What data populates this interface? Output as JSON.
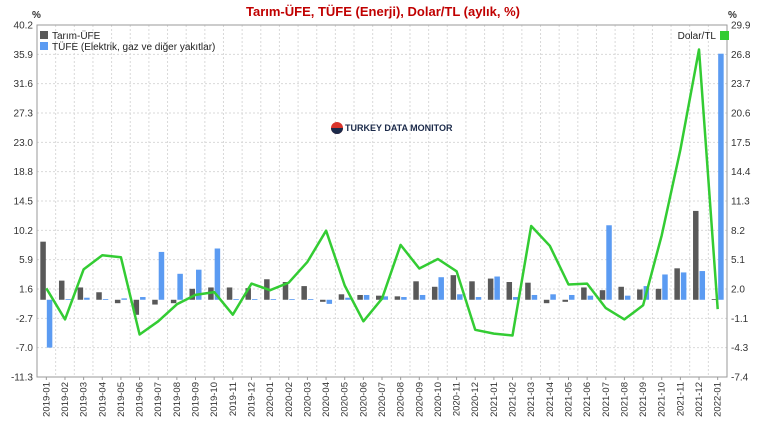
{
  "chart_data": {
    "type": "bar",
    "title": "Tarım-ÜFE, TÜFE (Enerji), Dolar/TL (aylık, %)",
    "left_axis_unit": "%",
    "right_axis_unit": "%",
    "watermark": "TURKEY DATA MONITOR",
    "grid": true,
    "legend_placement_left": "top-left",
    "legend_placement_right": "top-right",
    "categories": [
      "2019-01",
      "2019-02",
      "2019-03",
      "2019-04",
      "2019-05",
      "2019-06",
      "2019-07",
      "2019-08",
      "2019-09",
      "2019-10",
      "2019-11",
      "2019-12",
      "2020-01",
      "2020-02",
      "2020-03",
      "2020-04",
      "2020-05",
      "2020-06",
      "2020-07",
      "2020-08",
      "2020-09",
      "2020-10",
      "2020-11",
      "2020-12",
      "2021-01",
      "2021-02",
      "2021-03",
      "2021-04",
      "2021-05",
      "2021-06",
      "2021-07",
      "2021-08",
      "2021-09",
      "2021-10",
      "2021-11",
      "2021-12",
      "2022-01"
    ],
    "y_left": {
      "ticks": [
        "40.2",
        "35.9",
        "31.6",
        "27.3",
        "23.0",
        "18.8",
        "14.5",
        "10.2",
        "5.9",
        "1.6",
        "-2.7",
        "-7.0",
        "-11.3"
      ],
      "ylim": [
        -11.3,
        40.2
      ]
    },
    "y_right": {
      "ticks": [
        "29.9",
        "26.8",
        "23.7",
        "20.6",
        "17.5",
        "14.4",
        "11.3",
        "8.2",
        "5.1",
        "2.0",
        "-1.1",
        "-4.3",
        "-7.4"
      ],
      "ylim": [
        -7.4,
        29.9
      ]
    },
    "series": [
      {
        "name": "Tarım-ÜFE",
        "type": "bar",
        "axis": "left",
        "color": "#595959",
        "values": [
          8.5,
          2.8,
          1.8,
          1.1,
          -0.5,
          -2.2,
          -0.7,
          -0.5,
          1.6,
          1.8,
          1.8,
          1.7,
          3.0,
          2.6,
          2.0,
          -0.3,
          0.8,
          0.7,
          0.6,
          0.5,
          2.7,
          1.9,
          3.6,
          2.7,
          3.1,
          2.6,
          2.5,
          -0.5,
          -0.3,
          1.8,
          1.4,
          1.9,
          1.5,
          1.6,
          4.6,
          13.0,
          0.1
        ]
      },
      {
        "name": "TÜFE (Elektrik, gaz ve diğer yakıtlar)",
        "type": "bar",
        "axis": "left",
        "color": "#5b9bf2",
        "values": [
          -7.0,
          0.1,
          0.3,
          0.1,
          0.2,
          0.4,
          7.0,
          3.8,
          4.4,
          7.5,
          0.1,
          0.1,
          0.1,
          0.1,
          0.1,
          -0.6,
          0.3,
          0.7,
          0.5,
          0.4,
          0.7,
          3.3,
          0.8,
          0.4,
          3.4,
          0.4,
          0.7,
          0.8,
          0.7,
          0.6,
          10.9,
          0.6,
          2.0,
          3.7,
          4.0,
          4.2,
          36.0
        ]
      },
      {
        "name": "Dolar/TL",
        "type": "line",
        "axis": "right",
        "color": "#33cc33",
        "values": [
          2.0,
          -1.3,
          4.0,
          5.5,
          5.3,
          -2.9,
          -1.5,
          0.3,
          1.3,
          1.6,
          -0.8,
          2.5,
          1.8,
          2.6,
          4.8,
          8.1,
          2.3,
          -1.5,
          0.9,
          6.6,
          4.1,
          5.1,
          3.8,
          -2.4,
          -2.8,
          -3.0,
          8.6,
          6.5,
          2.4,
          2.5,
          -0.1,
          -1.3,
          0.2,
          7.6,
          16.7,
          27.3,
          -0.2
        ]
      }
    ]
  }
}
